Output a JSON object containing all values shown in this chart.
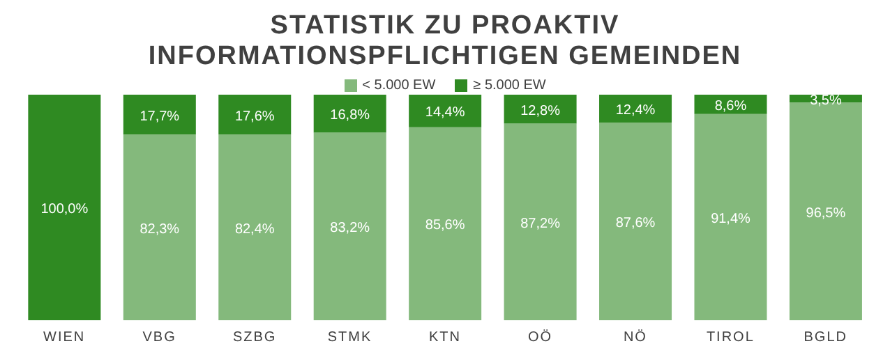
{
  "chart_data": {
    "type": "bar",
    "title": "STATISTIK ZU PROAKTIV INFORMATIONSPFLICHTIGEN GEMEINDEN",
    "categories": [
      "WIEN",
      "VBG",
      "SZBG",
      "STMK",
      "KTN",
      "OÖ",
      "NÖ",
      "TIROL",
      "BGLD"
    ],
    "stacked": true,
    "ylim": [
      0,
      100
    ],
    "tick_labels": "x",
    "legend": "top",
    "grid": false,
    "series": [
      {
        "name": "< 5.000 EW",
        "color": "#84b97c",
        "values": [
          null,
          82.3,
          82.4,
          83.2,
          85.6,
          87.2,
          87.6,
          91.4,
          96.5
        ],
        "value_labels": [
          null,
          "82,3%",
          "82,4%",
          "83,2%",
          "85,6%",
          "87,2%",
          "87,6%",
          "91,4%",
          "96,5%"
        ]
      },
      {
        "name": "≥ 5.000 EW",
        "color": "#2f8a22",
        "values": [
          100.0,
          17.7,
          17.6,
          16.8,
          14.4,
          12.8,
          12.4,
          8.6,
          3.5
        ],
        "value_labels": [
          "100,0%",
          "17,7%",
          "17,6%",
          "16,8%",
          "14,4%",
          "12,8%",
          "12,4%",
          "8,6%",
          "3,5%"
        ]
      }
    ]
  }
}
